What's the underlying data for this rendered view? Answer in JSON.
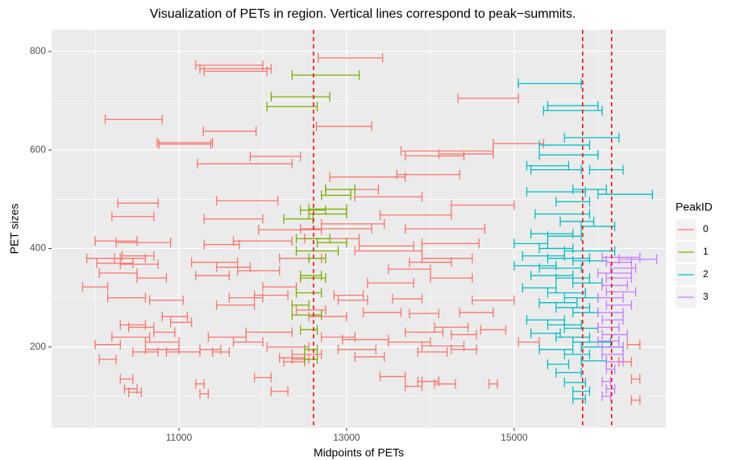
{
  "chart_data": {
    "type": "errorbarh",
    "title": "Visualization of PETs in region. Vertical lines correspond to peak−summits.",
    "xlabel": "Midpoints of PETs",
    "ylabel": "PET sizes",
    "legend_title": "PeakID",
    "xlim": [
      9480,
      16810
    ],
    "ylim": [
      36,
      844
    ],
    "xticks": [
      11000,
      13000,
      15000
    ],
    "yticks": [
      200,
      400,
      600,
      800
    ],
    "xminor": [
      10000,
      12000,
      14000,
      16000
    ],
    "yminor": [
      100,
      300,
      500,
      700
    ],
    "grid": true,
    "vlines": [
      12606,
      15817,
      16163
    ],
    "vline_color": "#ff0000",
    "series": [
      {
        "name": "0",
        "color": "#F8766D",
        "values": [
          [
            12660,
            13430,
            787
          ],
          [
            11200,
            12000,
            772
          ],
          [
            11250,
            12100,
            765
          ],
          [
            11300,
            12050,
            760
          ],
          [
            14330,
            15050,
            705
          ],
          [
            10120,
            10800,
            662
          ],
          [
            11290,
            11920,
            638
          ],
          [
            12640,
            13300,
            648
          ],
          [
            10740,
            11400,
            615
          ],
          [
            10760,
            11380,
            612
          ],
          [
            14750,
            15350,
            613
          ],
          [
            13650,
            14750,
            598
          ],
          [
            13700,
            14400,
            588
          ],
          [
            14100,
            14750,
            592
          ],
          [
            11220,
            12350,
            572
          ],
          [
            11850,
            12450,
            587
          ],
          [
            12800,
            13700,
            545
          ],
          [
            13600,
            14350,
            550
          ],
          [
            10270,
            10750,
            492
          ],
          [
            11450,
            12180,
            497
          ],
          [
            12750,
            13380,
            520
          ],
          [
            13100,
            13900,
            505
          ],
          [
            14250,
            15000,
            488
          ],
          [
            13400,
            14250,
            468
          ],
          [
            10200,
            10700,
            465
          ],
          [
            11300,
            12000,
            460
          ],
          [
            12450,
            13300,
            440
          ],
          [
            11950,
            12700,
            438
          ],
          [
            12700,
            13450,
            450
          ],
          [
            13700,
            14650,
            440
          ],
          [
            10000,
            10500,
            415
          ],
          [
            10250,
            10900,
            412
          ],
          [
            11650,
            12350,
            415
          ],
          [
            12500,
            13150,
            420
          ],
          [
            11300,
            11720,
            408
          ],
          [
            13150,
            13800,
            405
          ],
          [
            13900,
            14580,
            410
          ],
          [
            13100,
            13900,
            395
          ],
          [
            9900,
            10300,
            380
          ],
          [
            10020,
            10450,
            370
          ],
          [
            10230,
            10600,
            380
          ],
          [
            10300,
            10750,
            368
          ],
          [
            10320,
            10700,
            385
          ],
          [
            11150,
            11700,
            372
          ],
          [
            11450,
            11850,
            362
          ],
          [
            12200,
            12700,
            380
          ],
          [
            13750,
            14250,
            372
          ],
          [
            13900,
            14500,
            380
          ],
          [
            13500,
            14000,
            358
          ],
          [
            10500,
            10850,
            340
          ],
          [
            10050,
            10500,
            350
          ],
          [
            11200,
            11600,
            345
          ],
          [
            11700,
            12200,
            355
          ],
          [
            12000,
            12400,
            322
          ],
          [
            13250,
            13800,
            330
          ],
          [
            14000,
            14500,
            340
          ],
          [
            9850,
            10150,
            322
          ],
          [
            10650,
            11050,
            295
          ],
          [
            11600,
            12000,
            300
          ],
          [
            11900,
            12300,
            305
          ],
          [
            12850,
            13200,
            305
          ],
          [
            12900,
            13250,
            295
          ],
          [
            13550,
            13900,
            298
          ],
          [
            14500,
            15000,
            295
          ],
          [
            10150,
            10600,
            300
          ],
          [
            10800,
            11100,
            262
          ],
          [
            11450,
            11900,
            285
          ],
          [
            12400,
            12750,
            275
          ],
          [
            13200,
            13650,
            270
          ],
          [
            13750,
            14100,
            268
          ],
          [
            14350,
            14750,
            270
          ],
          [
            12550,
            13000,
            262
          ],
          [
            10300,
            10600,
            245
          ],
          [
            10400,
            10700,
            240
          ],
          [
            10900,
            11150,
            250
          ],
          [
            10700,
            10950,
            230
          ],
          [
            11800,
            12350,
            230
          ],
          [
            12700,
            13100,
            220
          ],
          [
            12950,
            13500,
            215
          ],
          [
            13700,
            14150,
            230
          ],
          [
            14050,
            14450,
            240
          ],
          [
            14600,
            14900,
            235
          ],
          [
            14250,
            14550,
            225
          ],
          [
            15050,
            15300,
            210
          ],
          [
            10000,
            10300,
            205
          ],
          [
            10200,
            10650,
            220
          ],
          [
            10600,
            11000,
            210
          ],
          [
            11350,
            11800,
            220
          ],
          [
            11650,
            12000,
            210
          ],
          [
            12050,
            12550,
            200
          ],
          [
            12900,
            13350,
            195
          ],
          [
            13500,
            14000,
            210
          ],
          [
            13900,
            14400,
            202
          ],
          [
            10450,
            10750,
            190
          ],
          [
            10600,
            11000,
            195
          ],
          [
            10850,
            11250,
            190
          ],
          [
            11250,
            11500,
            195
          ],
          [
            11400,
            11600,
            190
          ],
          [
            12200,
            12500,
            178
          ],
          [
            12350,
            12700,
            185
          ],
          [
            13100,
            13450,
            180
          ],
          [
            13850,
            14200,
            190
          ],
          [
            14250,
            14550,
            195
          ],
          [
            10050,
            10250,
            175
          ],
          [
            12250,
            12500,
            170
          ],
          [
            12350,
            12550,
            175
          ],
          [
            11900,
            12100,
            138
          ],
          [
            13400,
            13700,
            140
          ],
          [
            13850,
            14100,
            130
          ],
          [
            14050,
            14300,
            125
          ],
          [
            14700,
            14800,
            125
          ],
          [
            10300,
            10450,
            135
          ],
          [
            10350,
            10500,
            115
          ],
          [
            10400,
            10550,
            108
          ],
          [
            11200,
            11300,
            125
          ],
          [
            11250,
            11350,
            105
          ],
          [
            12100,
            12300,
            110
          ],
          [
            13700,
            13900,
            120
          ],
          [
            13900,
            14100,
            130
          ],
          [
            16350,
            16500,
            205
          ],
          [
            16250,
            16400,
            170
          ],
          [
            16400,
            16500,
            135
          ],
          [
            16400,
            16500,
            92
          ]
        ]
      },
      {
        "name": "1",
        "color": "#7CAE00",
        "values": [
          [
            12350,
            13150,
            752
          ],
          [
            12100,
            12800,
            708
          ],
          [
            12050,
            12650,
            688
          ],
          [
            12750,
            13100,
            520
          ],
          [
            12700,
            13050,
            508
          ],
          [
            12550,
            13000,
            480
          ],
          [
            12450,
            12750,
            478
          ],
          [
            12550,
            13000,
            470
          ],
          [
            12250,
            12600,
            460
          ],
          [
            12400,
            12800,
            420
          ],
          [
            12650,
            13000,
            412
          ],
          [
            12400,
            12900,
            395
          ],
          [
            12550,
            12750,
            380
          ],
          [
            12450,
            12700,
            345
          ],
          [
            12450,
            12750,
            340
          ],
          [
            12400,
            12700,
            310
          ],
          [
            12350,
            12550,
            285
          ],
          [
            12350,
            12700,
            265
          ],
          [
            12450,
            12650,
            235
          ],
          [
            12500,
            12650,
            195
          ],
          [
            12500,
            12650,
            175
          ]
        ]
      },
      {
        "name": "2",
        "color": "#00BFC4",
        "values": [
          [
            15050,
            15800,
            735
          ],
          [
            15400,
            16000,
            690
          ],
          [
            15350,
            16050,
            680
          ],
          [
            15600,
            16250,
            625
          ],
          [
            15300,
            15900,
            610
          ],
          [
            15300,
            16000,
            590
          ],
          [
            15150,
            15650,
            568
          ],
          [
            15200,
            15800,
            560
          ],
          [
            15900,
            16300,
            560
          ],
          [
            15150,
            15850,
            515
          ],
          [
            15700,
            16100,
            520
          ],
          [
            16000,
            16650,
            510
          ],
          [
            15500,
            15900,
            495
          ],
          [
            15250,
            15900,
            470
          ],
          [
            15550,
            15950,
            455
          ],
          [
            15800,
            16200,
            445
          ],
          [
            15200,
            15700,
            430
          ],
          [
            15400,
            15800,
            425
          ],
          [
            15000,
            15400,
            410
          ],
          [
            15300,
            15700,
            400
          ],
          [
            15600,
            16200,
            395
          ],
          [
            15100,
            15600,
            385
          ],
          [
            15400,
            15900,
            380
          ],
          [
            15700,
            16100,
            375
          ],
          [
            15000,
            15500,
            365
          ],
          [
            15300,
            15800,
            360
          ],
          [
            15200,
            15700,
            345
          ],
          [
            15500,
            15900,
            340
          ],
          [
            15700,
            16050,
            330
          ],
          [
            15100,
            15500,
            320
          ],
          [
            15400,
            15850,
            310
          ],
          [
            15600,
            16000,
            300
          ],
          [
            15300,
            15750,
            290
          ],
          [
            15500,
            15900,
            280
          ],
          [
            15700,
            16000,
            270
          ],
          [
            15150,
            15600,
            255
          ],
          [
            15400,
            15800,
            245
          ],
          [
            15600,
            16000,
            238
          ],
          [
            15200,
            15550,
            228
          ],
          [
            15500,
            15900,
            220
          ],
          [
            15700,
            16150,
            210
          ],
          [
            15800,
            16300,
            200
          ],
          [
            15300,
            15700,
            195
          ],
          [
            15600,
            15900,
            185
          ],
          [
            15800,
            16100,
            172
          ],
          [
            15400,
            15650,
            165
          ],
          [
            15500,
            15800,
            148
          ],
          [
            15600,
            15850,
            128
          ],
          [
            15700,
            15900,
            110
          ],
          [
            15700,
            15850,
            95
          ]
        ]
      },
      {
        "name": "3",
        "color": "#C77CFF",
        "values": [
          [
            16250,
            16700,
            378
          ],
          [
            16050,
            16500,
            382
          ],
          [
            16100,
            16400,
            372
          ],
          [
            16150,
            16450,
            360
          ],
          [
            16000,
            16400,
            350
          ],
          [
            16100,
            16400,
            340
          ],
          [
            16050,
            16350,
            325
          ],
          [
            16100,
            16450,
            312
          ],
          [
            16000,
            16300,
            300
          ],
          [
            16100,
            16400,
            285
          ],
          [
            16000,
            16300,
            270
          ],
          [
            16050,
            16300,
            255
          ],
          [
            16000,
            16250,
            240
          ],
          [
            16050,
            16350,
            225
          ],
          [
            16000,
            16250,
            212
          ],
          [
            16050,
            16300,
            200
          ],
          [
            16050,
            16300,
            185
          ],
          [
            16100,
            16300,
            170
          ],
          [
            16100,
            16200,
            155
          ],
          [
            16050,
            16150,
            130
          ],
          [
            16100,
            16200,
            115
          ],
          [
            16050,
            16150,
            100
          ]
        ]
      }
    ]
  }
}
